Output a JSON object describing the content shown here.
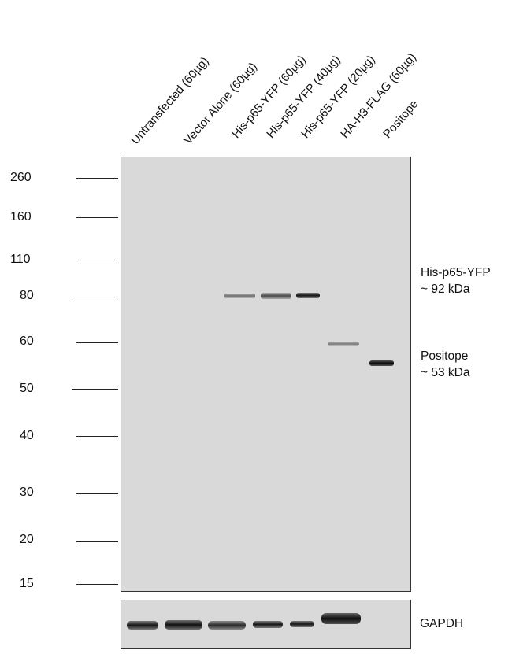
{
  "lanes": [
    {
      "label": "Untransfected (60µg)"
    },
    {
      "label": "Vector Alone (60µg)"
    },
    {
      "label": "His-p65-YFP (60µg)"
    },
    {
      "label": "His-p65-YFP (40µg)"
    },
    {
      "label": "His-p65-YFP (20µg)"
    },
    {
      "label": "HA-H3-FLAG (60µg)"
    },
    {
      "label": "Positope"
    }
  ],
  "markers": [
    "260",
    "160",
    "110",
    "80",
    "60",
    "50",
    "40",
    "30",
    "20",
    "15"
  ],
  "annotations": {
    "p65_line1": "His-p65-YFP",
    "p65_line2": "~ 92 kDa",
    "positope_line1": "Positope",
    "positope_line2": "~ 53 kDa",
    "gapdh": "GAPDH"
  }
}
